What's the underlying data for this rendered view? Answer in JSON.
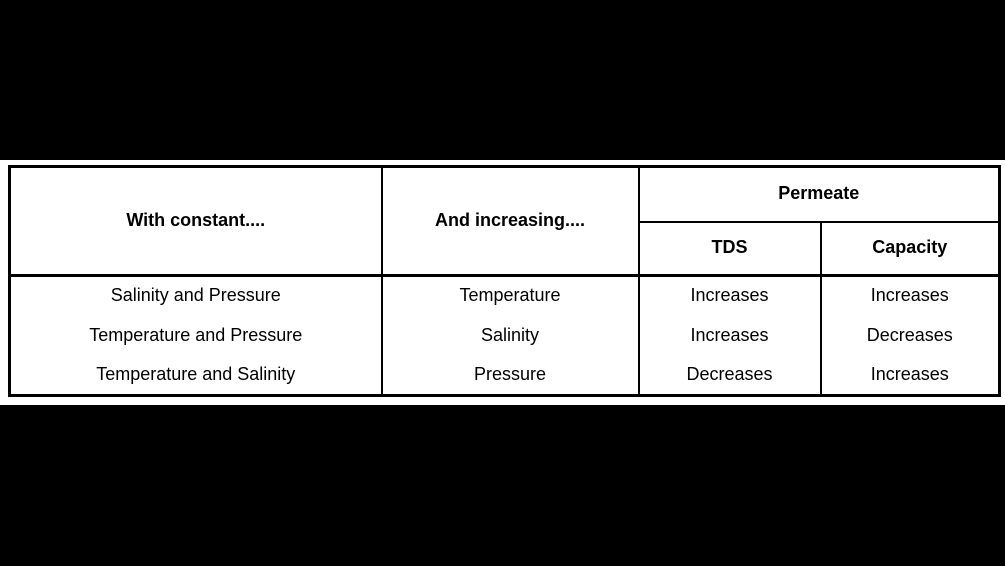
{
  "table": {
    "headers": {
      "with_constant": "With constant....",
      "and_increasing": "And increasing....",
      "permeate": "Permeate",
      "tds": "TDS",
      "capacity": "Capacity"
    },
    "rows": [
      [
        "Salinity and Pressure",
        "Temperature",
        "Increases",
        "Increases"
      ],
      [
        "Temperature and Pressure",
        "Salinity",
        "Increases",
        "Decreases"
      ],
      [
        "Temperature and Salinity",
        "Pressure",
        "Decreases",
        "Increases"
      ]
    ]
  },
  "colors": {
    "page_background": "#000000",
    "table_background": "#ffffff",
    "border": "#000000",
    "text": "#000000"
  }
}
